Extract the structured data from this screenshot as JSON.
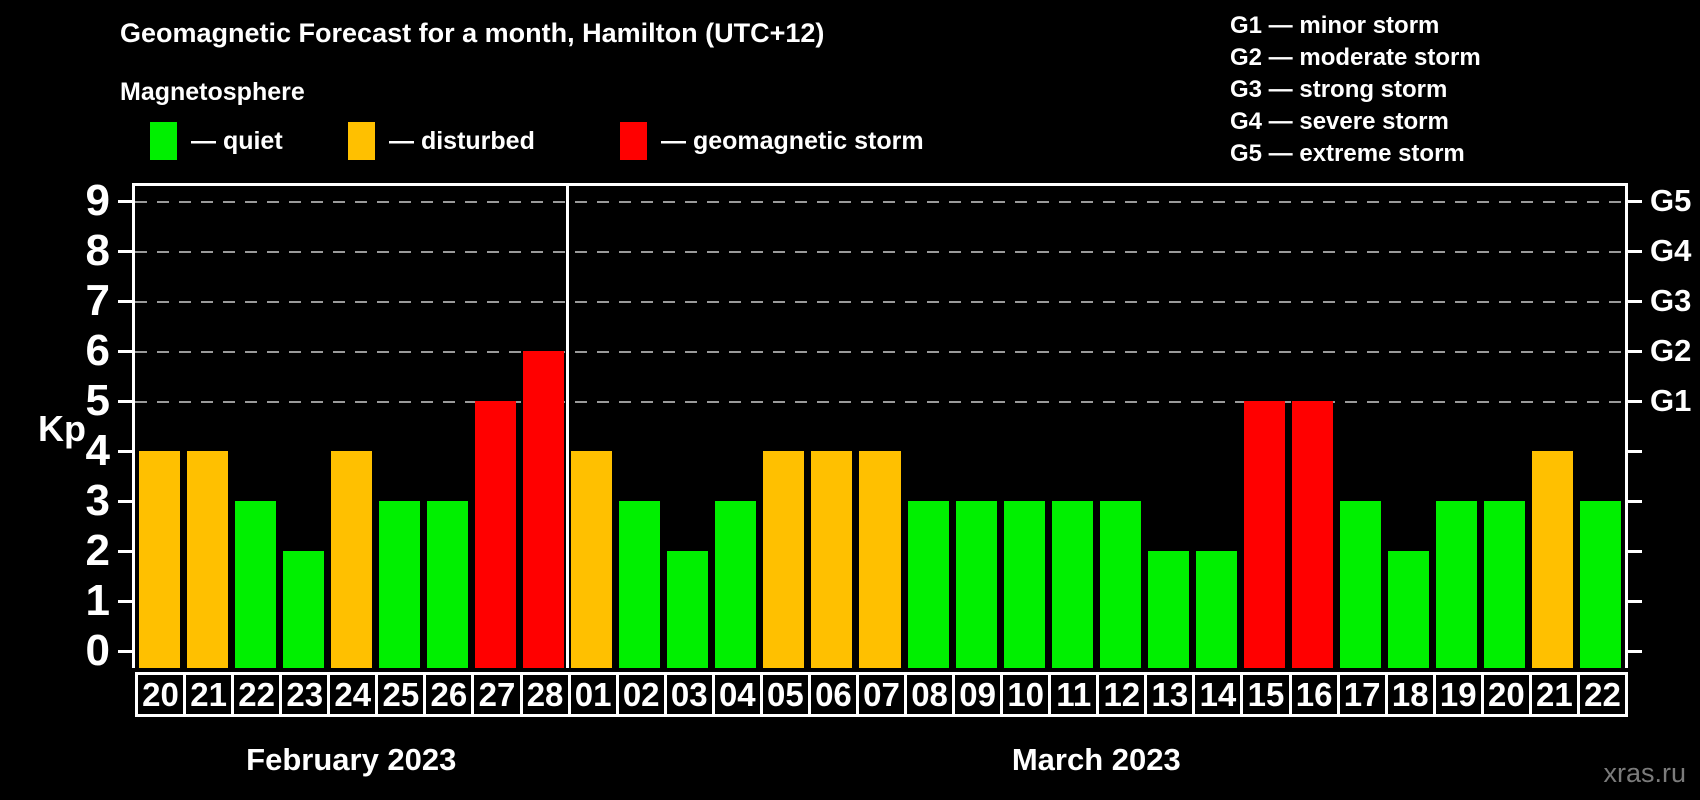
{
  "title": "Geomagnetic Forecast for a month, Hamilton (UTC+12)",
  "subtitle": "Magnetosphere",
  "kp_axis_label": "Kp",
  "watermark": "xras.ru",
  "legend": {
    "items": [
      {
        "key": "quiet",
        "label": "— quiet",
        "color": "#00f000"
      },
      {
        "key": "disturbed",
        "label": "— disturbed",
        "color": "#ffc000"
      },
      {
        "key": "storm",
        "label": "— geomagnetic storm",
        "color": "#ff0000"
      }
    ]
  },
  "storm_scale": [
    "G1 — minor storm",
    "G2 — moderate storm",
    "G3 — strong storm",
    "G4 — severe storm",
    "G5 — extreme storm"
  ],
  "chart_data": {
    "type": "bar",
    "title": "Geomagnetic Forecast for a month, Hamilton (UTC+12)",
    "xlabel": "",
    "ylabel": "Kp",
    "ylim": [
      0,
      9.4
    ],
    "yticks": [
      0,
      1,
      2,
      3,
      4,
      5,
      6,
      7,
      8,
      9
    ],
    "grid_levels": [
      5,
      6,
      7,
      8,
      9
    ],
    "grid": "dashed, horizontal, levels 5-9 only",
    "legend_position": "top",
    "right_axis_labels": [
      {
        "value": 5,
        "label": "G1"
      },
      {
        "value": 6,
        "label": "G2"
      },
      {
        "value": 7,
        "label": "G3"
      },
      {
        "value": 8,
        "label": "G4"
      },
      {
        "value": 9,
        "label": "G5"
      }
    ],
    "color_map": {
      "quiet": "#00f000",
      "disturbed": "#ffc000",
      "storm": "#ff0000"
    },
    "months": [
      {
        "label": "February 2023",
        "start_index": 0,
        "days": 9
      },
      {
        "label": "March 2023",
        "start_index": 9,
        "days": 22
      }
    ],
    "bars": [
      {
        "day": "20",
        "value": 4,
        "status": "disturbed"
      },
      {
        "day": "21",
        "value": 4,
        "status": "disturbed"
      },
      {
        "day": "22",
        "value": 3,
        "status": "quiet"
      },
      {
        "day": "23",
        "value": 2,
        "status": "quiet"
      },
      {
        "day": "24",
        "value": 4,
        "status": "disturbed"
      },
      {
        "day": "25",
        "value": 3,
        "status": "quiet"
      },
      {
        "day": "26",
        "value": 3,
        "status": "quiet"
      },
      {
        "day": "27",
        "value": 5,
        "status": "storm"
      },
      {
        "day": "28",
        "value": 6,
        "status": "storm"
      },
      {
        "day": "01",
        "value": 4,
        "status": "disturbed"
      },
      {
        "day": "02",
        "value": 3,
        "status": "quiet"
      },
      {
        "day": "03",
        "value": 2,
        "status": "quiet"
      },
      {
        "day": "04",
        "value": 3,
        "status": "quiet"
      },
      {
        "day": "05",
        "value": 4,
        "status": "disturbed"
      },
      {
        "day": "06",
        "value": 4,
        "status": "disturbed"
      },
      {
        "day": "07",
        "value": 4,
        "status": "disturbed"
      },
      {
        "day": "08",
        "value": 3,
        "status": "quiet"
      },
      {
        "day": "09",
        "value": 3,
        "status": "quiet"
      },
      {
        "day": "10",
        "value": 3,
        "status": "quiet"
      },
      {
        "day": "11",
        "value": 3,
        "status": "quiet"
      },
      {
        "day": "12",
        "value": 3,
        "status": "quiet"
      },
      {
        "day": "13",
        "value": 2,
        "status": "quiet"
      },
      {
        "day": "14",
        "value": 2,
        "status": "quiet"
      },
      {
        "day": "15",
        "value": 5,
        "status": "storm"
      },
      {
        "day": "16",
        "value": 5,
        "status": "storm"
      },
      {
        "day": "17",
        "value": 3,
        "status": "quiet"
      },
      {
        "day": "18",
        "value": 2,
        "status": "quiet"
      },
      {
        "day": "19",
        "value": 3,
        "status": "quiet"
      },
      {
        "day": "20",
        "value": 3,
        "status": "quiet"
      },
      {
        "day": "21",
        "value": 4,
        "status": "disturbed"
      },
      {
        "day": "22",
        "value": 3,
        "status": "quiet"
      }
    ]
  }
}
